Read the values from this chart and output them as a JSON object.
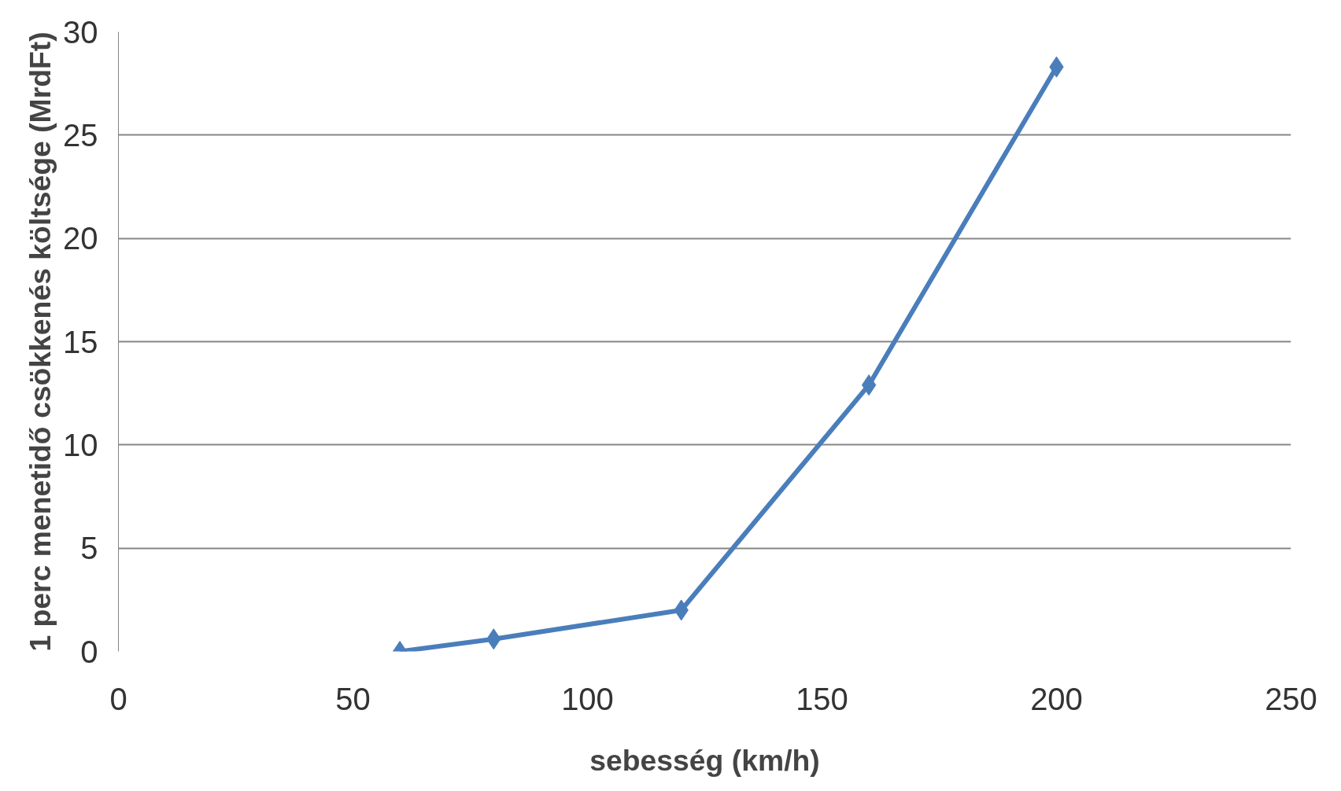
{
  "chart_data": {
    "type": "line",
    "xlabel": "sebesség (km/h)",
    "ylabel": "1 perc menetidő csökkenés költsége (MrdFt)",
    "x": [
      60,
      80,
      120,
      160,
      200
    ],
    "series": [
      {
        "color": "#4a7ebb",
        "values": [
          0,
          0.6,
          2.0,
          12.9,
          28.3
        ]
      }
    ],
    "xlim": [
      0,
      250
    ],
    "xticks": [
      0,
      50,
      100,
      150,
      200,
      250
    ],
    "ylim": [
      0,
      30
    ],
    "yticks": [
      0,
      5,
      10,
      15,
      20,
      25,
      30
    ],
    "grid": "y",
    "marker": "diamond",
    "line_style": "solid"
  }
}
